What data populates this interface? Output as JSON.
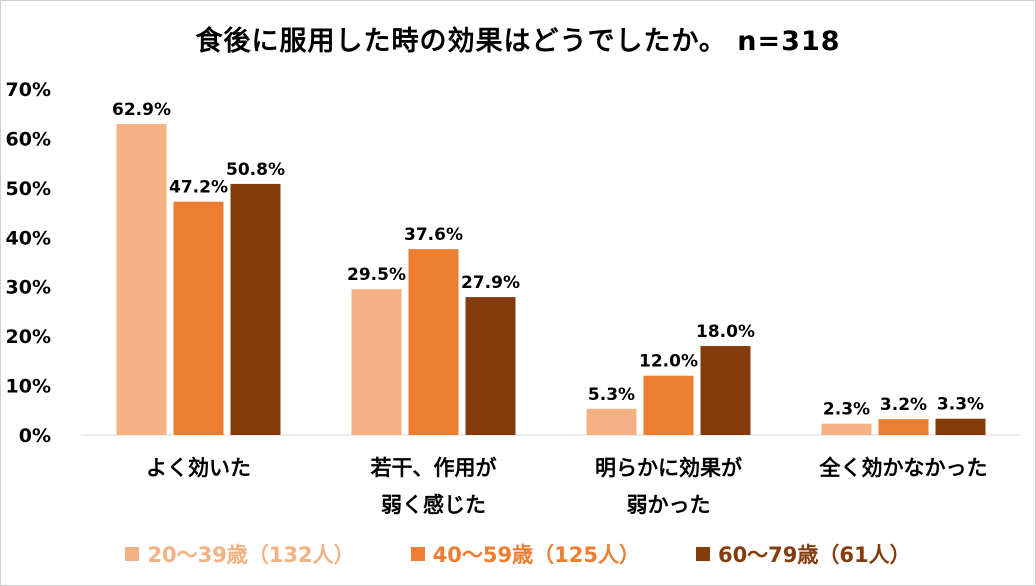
{
  "chart_data": {
    "type": "bar",
    "title": "食後に服用した時の効果はどうでしたか。 n=318",
    "categories": [
      [
        "よく効いた"
      ],
      [
        "若干、作用が",
        "弱く感じた"
      ],
      [
        "明らかに効果が",
        "弱かった"
      ],
      [
        "全く効かなかった"
      ]
    ],
    "series": [
      {
        "name": "20～39歳（132人）",
        "values": [
          62.9,
          29.5,
          5.3,
          2.3
        ],
        "labels": [
          "62.9%",
          "29.5%",
          "5.3%",
          "2.3%"
        ],
        "color": "#F4B183"
      },
      {
        "name": "40～59歳（125人）",
        "values": [
          47.2,
          37.6,
          12.0,
          3.2
        ],
        "labels": [
          "47.2%",
          "37.6%",
          "12.0%",
          "3.2%"
        ],
        "color": "#ED7D31"
      },
      {
        "name": "60～79歳（61人）",
        "values": [
          50.8,
          27.9,
          18.0,
          3.3
        ],
        "labels": [
          "50.8%",
          "27.9%",
          "18.0%",
          "3.3%"
        ],
        "color": "#843C0C"
      }
    ],
    "yticks": [
      "0%",
      "10%",
      "20%",
      "30%",
      "40%",
      "50%",
      "60%",
      "70%"
    ],
    "ylim": [
      0,
      70
    ],
    "grid": false,
    "legend": "bottom"
  }
}
